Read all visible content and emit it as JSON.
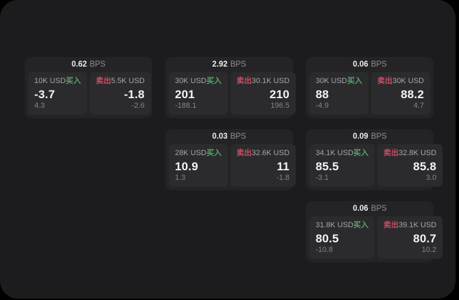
{
  "labels": {
    "buy": "买入",
    "sell": "卖出",
    "bps_suffix": "BPS"
  },
  "colors": {
    "buy": "#56a567",
    "sell": "#d04b61",
    "panel_bg": "#1c1c1e",
    "card_bg": "#242427",
    "side_bg": "#2b2b2e",
    "page_bg": "#000000"
  },
  "cards": [
    {
      "bps": "0.62",
      "buy": {
        "amount": "10K USD",
        "price": "-3.7",
        "delta": "4.3"
      },
      "sell": {
        "amount": "5.5K USD",
        "price": "-1.8",
        "delta": "-2.6"
      }
    },
    {
      "bps": "2.92",
      "buy": {
        "amount": "30K USD",
        "price": "201",
        "delta": "-188.1"
      },
      "sell": {
        "amount": "30.1K USD",
        "price": "210",
        "delta": "196.5"
      }
    },
    {
      "bps": "0.06",
      "buy": {
        "amount": "30K USD",
        "price": "88",
        "delta": "-4.9"
      },
      "sell": {
        "amount": "30K USD",
        "price": "88.2",
        "delta": "4.7"
      }
    },
    {
      "bps": "0.03",
      "buy": {
        "amount": "28K USD",
        "price": "10.9",
        "delta": "1.3"
      },
      "sell": {
        "amount": "32.6K USD",
        "price": "11",
        "delta": "-1.8"
      }
    },
    {
      "bps": "0.09",
      "buy": {
        "amount": "34.1K USD",
        "price": "85.5",
        "delta": "-3.1"
      },
      "sell": {
        "amount": "32.8K USD",
        "price": "85.8",
        "delta": "3.0"
      }
    },
    {
      "bps": "0.06",
      "buy": {
        "amount": "31.8K USD",
        "price": "80.5",
        "delta": "-10.8"
      },
      "sell": {
        "amount": "39.1K USD",
        "price": "80.7",
        "delta": "10.2"
      }
    }
  ]
}
